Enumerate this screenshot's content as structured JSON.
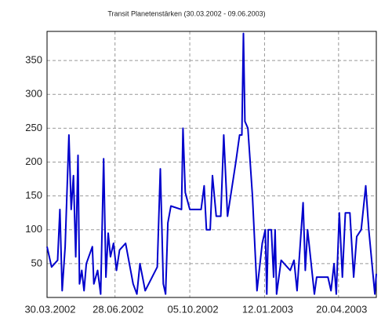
{
  "chart_data": {
    "type": "line",
    "title": "Transit Planetenstärken (30.03.2002 - 09.06.2003)",
    "x": [
      "30.03.2002",
      "05.04.2002",
      "13.04.2002",
      "16.04.2002",
      "19.04.2002",
      "23.04.2002",
      "28.04.2002",
      "01.05.2002",
      "04.05.2002",
      "07.05.2002",
      "10.05.2002",
      "12.05.2002",
      "15.05.2002",
      "18.05.2002",
      "21.05.2002",
      "29.05.2002",
      "31.05.2002",
      "05.06.2002",
      "09.06.2002",
      "13.06.2002",
      "16.06.2002",
      "19.06.2002",
      "22.06.2002",
      "26.06.2002",
      "30.06.2002",
      "04.07.2002",
      "12.07.2002",
      "22.07.2002",
      "27.07.2002",
      "31.07.2002",
      "07.08.2002",
      "23.08.2002",
      "27.08.2002",
      "31.08.2002",
      "03.09.2002",
      "06.09.2002",
      "10.09.2002",
      "24.09.2002",
      "26.09.2002",
      "29.09.2002",
      "05.10.2002",
      "20.10.2002",
      "24.10.2002",
      "27.10.2002",
      "01.11.2002",
      "04.11.2002",
      "09.11.2002",
      "15.11.2002",
      "19.11.2002",
      "24.11.2002",
      "05.12.2002",
      "10.12.2002",
      "13.12.2002",
      "15.12.2002",
      "17.12.2002",
      "21.12.2002",
      "27.12.2002",
      "02.01.2003",
      "09.01.2003",
      "13.01.2003",
      "15.01.2003",
      "17.01.2003",
      "21.01.2003",
      "24.01.2003",
      "26.01.2003",
      "28.01.2003",
      "03.02.2003",
      "15.02.2003",
      "20.02.2003",
      "24.02.2003",
      "04.03.2003",
      "07.03.2003",
      "10.03.2003",
      "19.03.2003",
      "22.03.2003",
      "06.04.2003",
      "10.04.2003",
      "14.04.2003",
      "17.04.2003",
      "21.04.2003",
      "25.04.2003",
      "29.04.2003",
      "05.05.2003",
      "10.05.2003",
      "14.05.2003",
      "20.05.2003",
      "26.05.2003",
      "30.05.2003",
      "07.06.2003",
      "09.06.2003"
    ],
    "series": [
      {
        "color": "#0000cc",
        "values": [
          75,
          45,
          55,
          130,
          10,
          75,
          240,
          130,
          180,
          60,
          210,
          20,
          40,
          10,
          50,
          75,
          20,
          40,
          5,
          205,
          30,
          95,
          60,
          80,
          40,
          70,
          80,
          20,
          5,
          50,
          10,
          45,
          190,
          20,
          5,
          110,
          135,
          130,
          250,
          155,
          130,
          130,
          165,
          100,
          100,
          180,
          120,
          120,
          240,
          120,
          200,
          240,
          240,
          390,
          260,
          250,
          150,
          10,
          80,
          100,
          5,
          100,
          100,
          30,
          100,
          5,
          55,
          40,
          55,
          10,
          140,
          40,
          100,
          5,
          30,
          30,
          10,
          50,
          5,
          125,
          30,
          125,
          125,
          30,
          90,
          100,
          165,
          100,
          5,
          35
        ]
      }
    ],
    "xlim": [
      "30.03.2002",
      "09.06.2003"
    ],
    "xticks": [
      "30.03.2002",
      "28.06.2002",
      "05.10.2002",
      "12.01.2003",
      "20.04.2003"
    ],
    "ylim": [
      0,
      393
    ],
    "yticks": [
      50,
      100,
      150,
      200,
      250,
      300,
      350
    ],
    "grid": true
  }
}
